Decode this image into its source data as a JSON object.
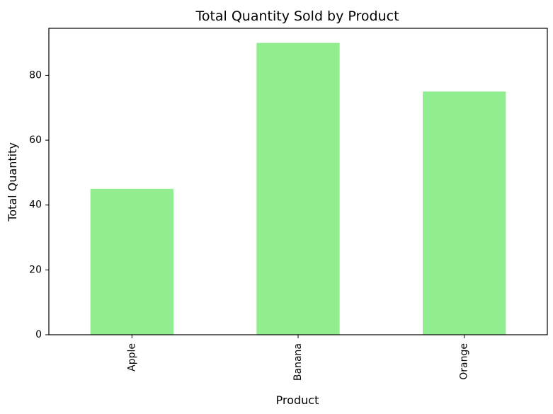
{
  "chart_data": {
    "type": "bar",
    "title": "Total Quantity Sold by Product",
    "xlabel": "Product",
    "ylabel": "Total Quantity",
    "categories": [
      "Apple",
      "Banana",
      "Orange"
    ],
    "values": [
      45,
      90,
      75
    ],
    "ylim": [
      0,
      94.5
    ],
    "yticks": [
      0,
      20,
      40,
      60,
      80
    ],
    "ytick_labels": [
      "0",
      "20",
      "40",
      "60",
      "80"
    ],
    "bar_color": "#90ee90",
    "grid": false,
    "legend": "none"
  }
}
